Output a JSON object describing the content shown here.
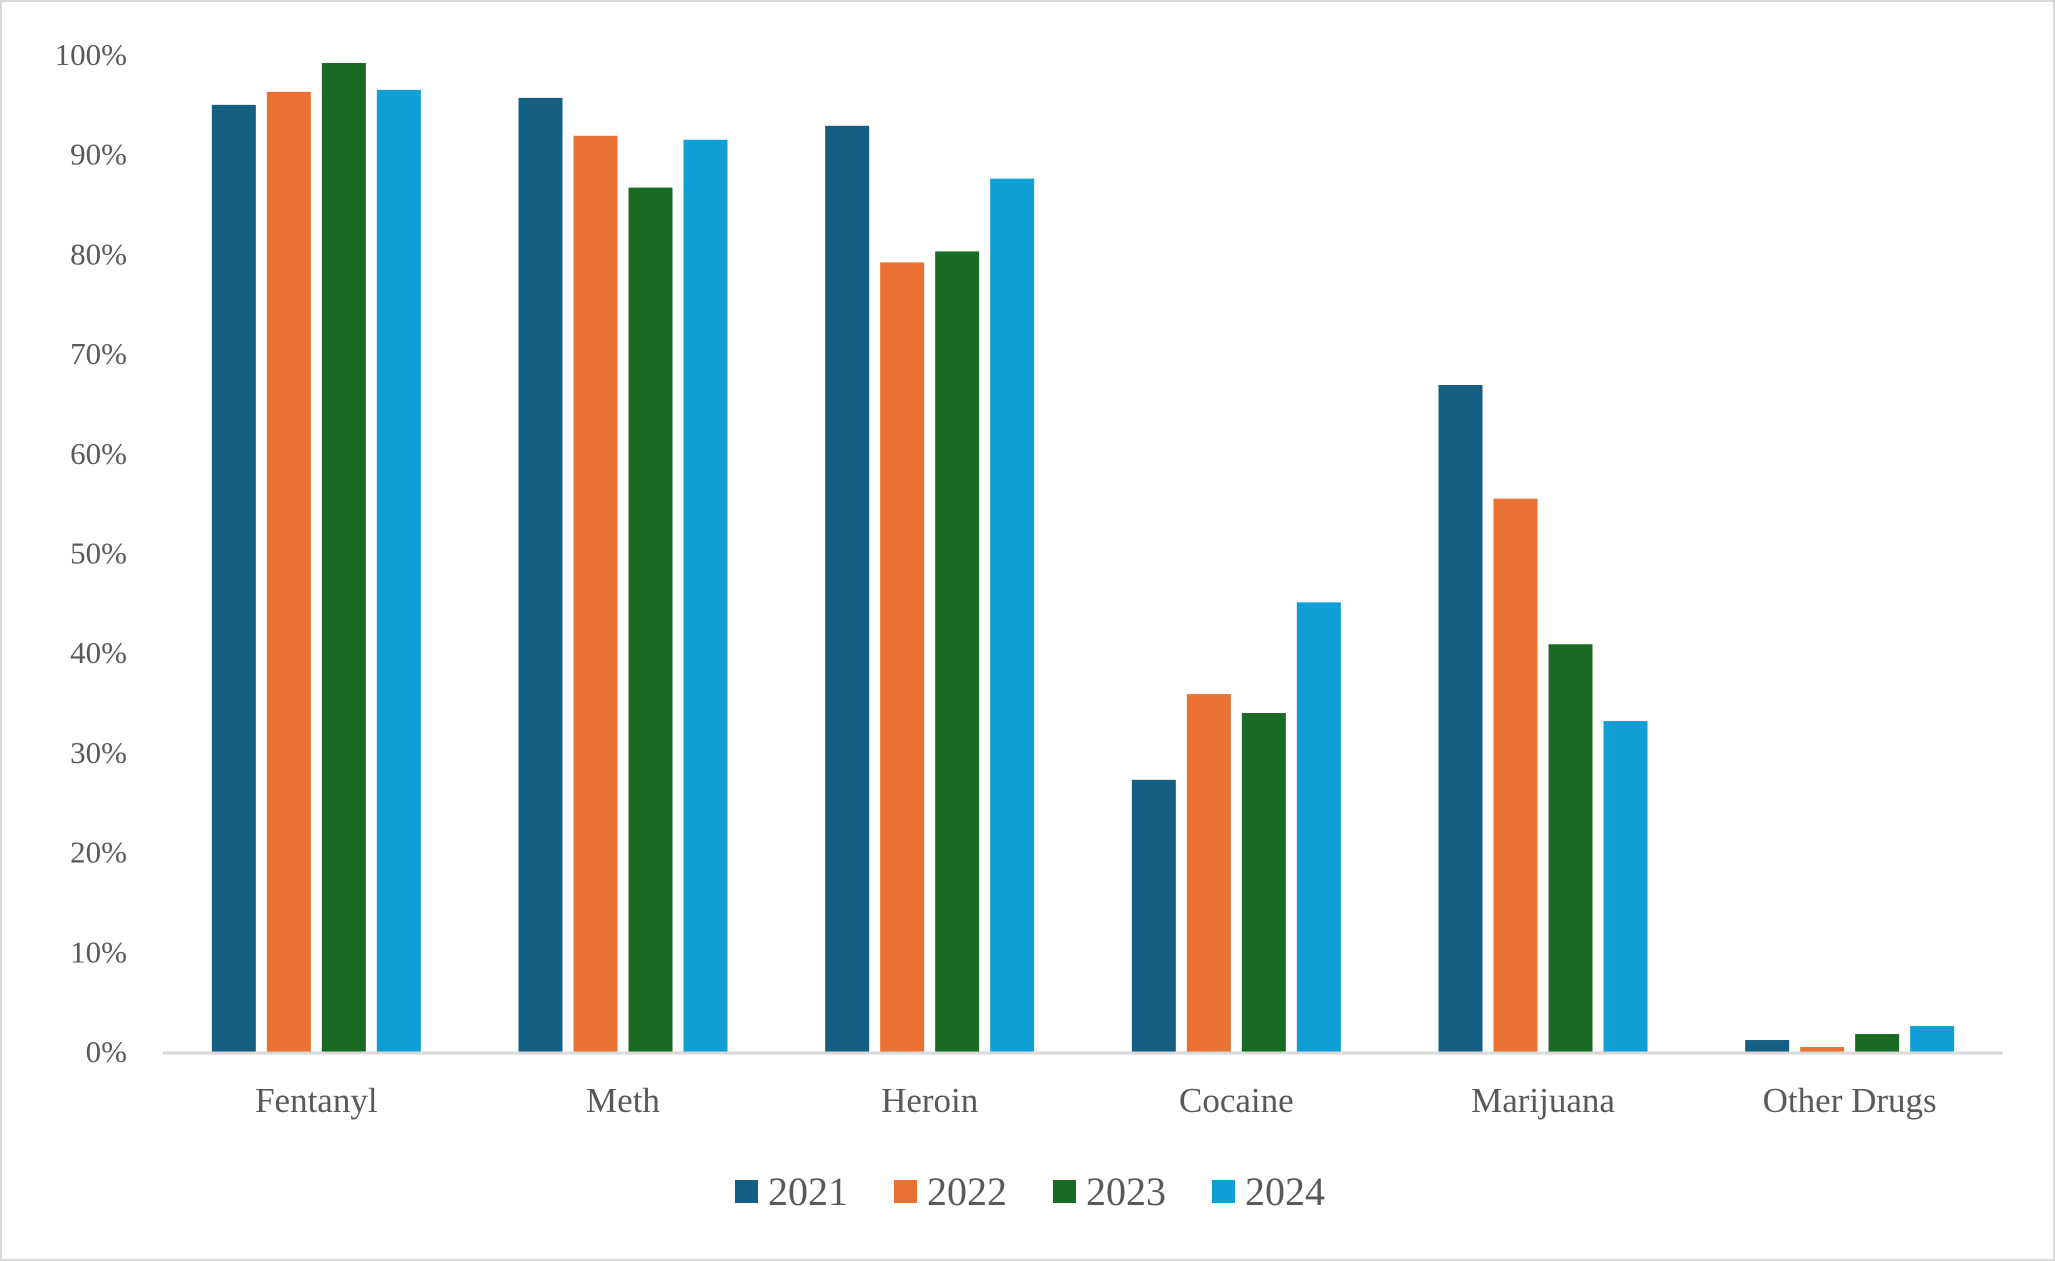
{
  "chart_data": {
    "type": "bar",
    "title": "",
    "xlabel": "",
    "ylabel": "",
    "ylim": [
      0,
      100
    ],
    "yticks": [
      "0%",
      "10%",
      "20%",
      "30%",
      "40%",
      "50%",
      "60%",
      "70%",
      "80%",
      "90%",
      "100%"
    ],
    "grid": false,
    "legend_position": "bottom",
    "categories": [
      "Fentanyl",
      "Meth",
      "Heroin",
      "Cocaine",
      "Marijuana",
      "Other Drugs"
    ],
    "series": [
      {
        "name": "2021",
        "color": "#155f82",
        "values": [
          95.0,
          95.7,
          92.9,
          27.3,
          66.9,
          1.2
        ]
      },
      {
        "name": "2022",
        "color": "#e97132",
        "values": [
          96.3,
          91.9,
          79.2,
          35.9,
          55.5,
          0.5
        ]
      },
      {
        "name": "2023",
        "color": "#196b24",
        "values": [
          99.2,
          86.7,
          80.3,
          34.0,
          40.9,
          1.8
        ]
      },
      {
        "name": "2024",
        "color": "#0f9ed5",
        "values": [
          96.5,
          91.5,
          87.6,
          45.1,
          33.2,
          2.6
        ]
      }
    ]
  }
}
